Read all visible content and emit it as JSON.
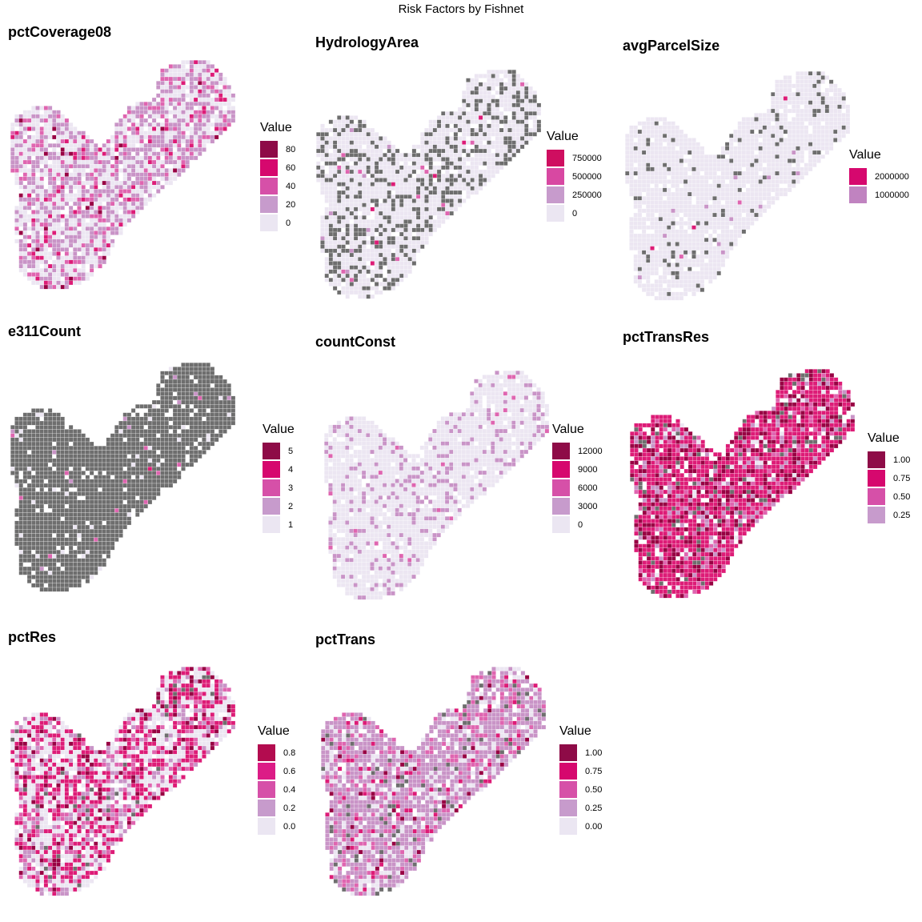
{
  "title": "Risk Factors by Fishnet",
  "colors": {
    "missing": "#6e6e6e",
    "ramp": [
      "#ece6f2",
      "#c994c7",
      "#df65b0",
      "#dd1c77",
      "#980043"
    ]
  },
  "panels": [
    {
      "title": "pctCoverage08",
      "legend_title": "Value",
      "legend": [
        {
          "label": "80",
          "color": "#8e0b47"
        },
        {
          "label": "60",
          "color": "#d6086e"
        },
        {
          "label": "40",
          "color": "#d650a8"
        },
        {
          "label": "20",
          "color": "#c79bcc"
        },
        {
          "label": "0",
          "color": "#ebe6f2"
        }
      ],
      "pattern": {
        "weights": [
          0.42,
          0.38,
          0.13,
          0.05,
          0.02
        ],
        "missing": 0.0
      }
    },
    {
      "title": "HydrologyArea",
      "legend_title": "Value",
      "legend": [
        {
          "label": "750000",
          "color": "#cf0e60"
        },
        {
          "label": "500000",
          "color": "#d848a2"
        },
        {
          "label": "250000",
          "color": "#c79bcc"
        },
        {
          "label": "0",
          "color": "#ebe6f2"
        }
      ],
      "pattern": {
        "weights": [
          0.97,
          0.01,
          0.01,
          0.01,
          0.0
        ],
        "missing": 0.3
      }
    },
    {
      "title": "avgParcelSize",
      "legend_title": "Value",
      "legend": [
        {
          "label": "2000000",
          "color": "#d6086e"
        },
        {
          "label": "1000000",
          "color": "#c083c0"
        }
      ],
      "pattern": {
        "weights": [
          0.985,
          0.01,
          0.003,
          0.002,
          0.0
        ],
        "missing": 0.08
      }
    },
    {
      "title": "e311Count",
      "legend_title": "Value",
      "legend": [
        {
          "label": "5",
          "color": "#8e0b47"
        },
        {
          "label": "4",
          "color": "#d6086e"
        },
        {
          "label": "3",
          "color": "#d650a8"
        },
        {
          "label": "2",
          "color": "#c79bcc"
        },
        {
          "label": "1",
          "color": "#ebe6f2"
        }
      ],
      "pattern": {
        "weights": [
          0.6,
          0.2,
          0.15,
          0.05,
          0.0
        ],
        "missing": 0.95
      }
    },
    {
      "title": "countConst",
      "legend_title": "Value",
      "legend": [
        {
          "label": "12000",
          "color": "#8e0b47"
        },
        {
          "label": "9000",
          "color": "#d6086e"
        },
        {
          "label": "6000",
          "color": "#d650a8"
        },
        {
          "label": "3000",
          "color": "#c79bcc"
        },
        {
          "label": "0",
          "color": "#ebe6f2"
        }
      ],
      "pattern": {
        "weights": [
          0.82,
          0.16,
          0.02,
          0.0,
          0.0
        ],
        "missing": 0.0
      }
    },
    {
      "title": "pctTransRes",
      "legend_title": "Value",
      "legend": [
        {
          "label": "1.00",
          "color": "#8e0b47"
        },
        {
          "label": "0.75",
          "color": "#d6086e"
        },
        {
          "label": "0.50",
          "color": "#d650a8"
        },
        {
          "label": "0.25",
          "color": "#c79bcc"
        }
      ],
      "pattern": {
        "weights": [
          0.04,
          0.08,
          0.1,
          0.55,
          0.23
        ],
        "missing": 0.05
      }
    },
    {
      "title": "pctRes",
      "legend_title": "Value",
      "legend": [
        {
          "label": "0.8",
          "color": "#b30c4f"
        },
        {
          "label": "0.6",
          "color": "#dc1c86"
        },
        {
          "label": "0.4",
          "color": "#d650a8"
        },
        {
          "label": "0.2",
          "color": "#c79bcc"
        },
        {
          "label": "0.0",
          "color": "#ebe6f2"
        }
      ],
      "pattern": {
        "weights": [
          0.35,
          0.15,
          0.12,
          0.3,
          0.08
        ],
        "missing": 0.03
      }
    },
    {
      "title": "pctTrans",
      "legend_title": "Value",
      "legend": [
        {
          "label": "1.00",
          "color": "#8e0b47"
        },
        {
          "label": "0.75",
          "color": "#d6086e"
        },
        {
          "label": "0.50",
          "color": "#d650a8"
        },
        {
          "label": "0.25",
          "color": "#c79bcc"
        },
        {
          "label": "0.00",
          "color": "#ebe6f2"
        }
      ],
      "pattern": {
        "weights": [
          0.2,
          0.6,
          0.14,
          0.04,
          0.02
        ],
        "missing": 0.05
      }
    }
  ]
}
